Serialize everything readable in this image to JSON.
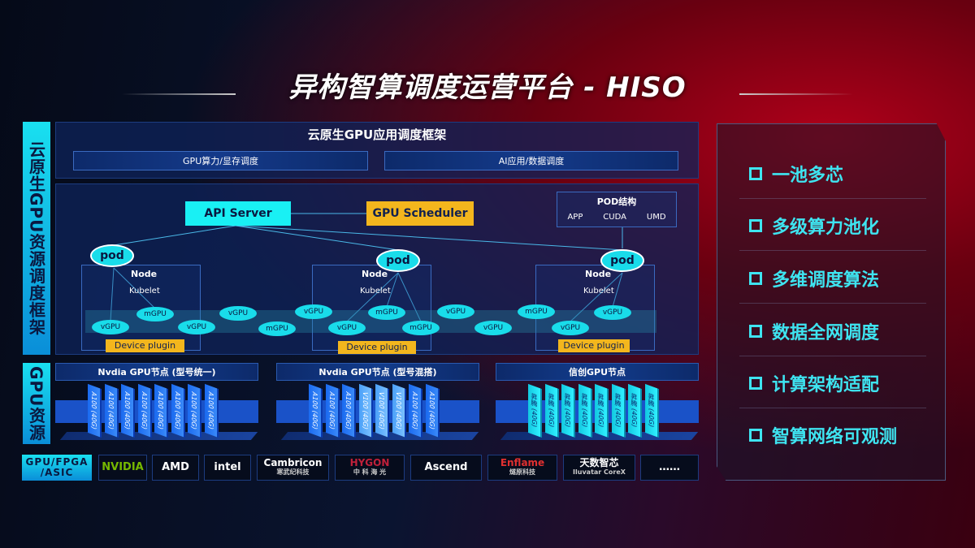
{
  "title": "异构智算调度运营平台 - HISO",
  "side_labels": {
    "top": "云原生GPU资源调度框架",
    "bottom": "GPU资源"
  },
  "framework": {
    "title": "云原生GPU应用调度框架",
    "bar_left": "GPU算力/显存调度",
    "bar_right": "AI应用/数据调度"
  },
  "diagram": {
    "api_server": "API Server",
    "gpu_scheduler": "GPU Scheduler",
    "pod_structure": {
      "title": "POD结构",
      "items": [
        "APP",
        "CUDA",
        "UMD"
      ]
    },
    "nodes": [
      {
        "pod": "pod",
        "node": "Node",
        "kubelet": "Kubelet",
        "plugin": "Device plugin"
      },
      {
        "pod": "pod",
        "node": "Node",
        "kubelet": "Kubelet",
        "plugin": "Device plugin"
      },
      {
        "pod": "pod",
        "node": "Node",
        "kubelet": "Kubelet",
        "plugin": "Device plugin"
      }
    ],
    "gpus": [
      "vGPU",
      "mGPU",
      "vGPU",
      "vGPU",
      "mGPU",
      "vGPU",
      "vGPU",
      "mGPU",
      "mGPU",
      "vGPU",
      "vGPU",
      "mGPU",
      "vGPU",
      "vGPU"
    ]
  },
  "gpu_groups": [
    {
      "title": "Nvdia GPU节点 (型号统一)",
      "chips": [
        "A100 (40G)",
        "A100 (40G)",
        "A100 (40G)",
        "A100 (40G)",
        "A100 (40G)",
        "A100 (40G)",
        "A100 (40G)",
        "A100 (40G)"
      ]
    },
    {
      "title": "Nvdia GPU节点 (型号混搭)",
      "chips": [
        "A100 (40G)",
        "A100 (40G)",
        "A100 (40G)",
        "V100 (40G)",
        "V100 (40G)",
        "V100 (40G)",
        "A100 (40G)",
        "A100 (40G)"
      ]
    },
    {
      "title": "信创GPU节点",
      "chips": [
        "昇腾 (40G)",
        "昇腾 (40G)",
        "昇腾 (40G)",
        "昇腾 (40G)",
        "昇腾 (40G)",
        "昇腾 (40G)",
        "昇腾 (40G)",
        "昇腾 (40G)"
      ]
    }
  ],
  "vendors": {
    "label": "GPU/FPGA /ASIC",
    "items": [
      {
        "name": "NVIDIA",
        "sub": "",
        "color": "#76b900"
      },
      {
        "name": "AMD",
        "sub": "",
        "color": "#ffffff"
      },
      {
        "name": "intel",
        "sub": "",
        "color": "#ffffff"
      },
      {
        "name": "Cambricon",
        "sub": "寒武纪科技",
        "color": "#ffffff"
      },
      {
        "name": "HYGON",
        "sub": "中 科 海 光",
        "color": "#c0203a"
      },
      {
        "name": "Ascend",
        "sub": "",
        "color": "#ffffff"
      },
      {
        "name": "Enflame",
        "sub": "燧原科技",
        "color": "#e03030"
      },
      {
        "name": "天数智芯",
        "sub": "Iluvatar CoreX",
        "color": "#ffffff"
      },
      {
        "name": "……",
        "sub": "",
        "color": "#ffffff"
      }
    ]
  },
  "features": [
    "一池多芯",
    "多级算力池化",
    "多维调度算法",
    "数据全网调度",
    "计算架构适配",
    "智算网络可观测"
  ],
  "colors": {
    "cyan": "#19dcea",
    "gold": "#f3b61d",
    "feature_text": "#3ee4f0"
  }
}
